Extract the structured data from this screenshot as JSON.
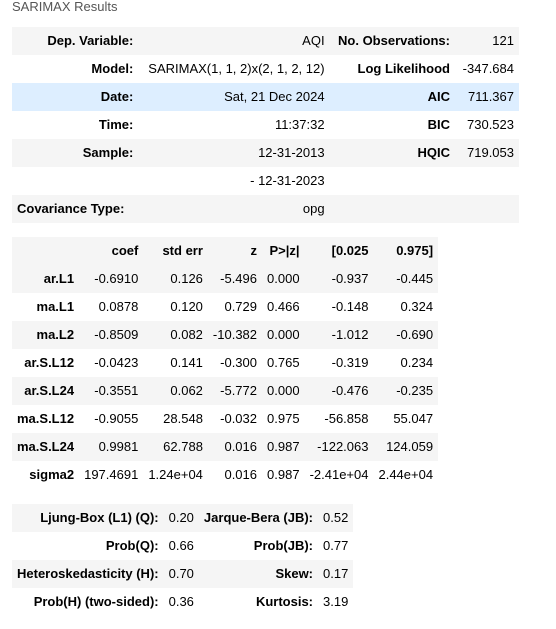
{
  "caption": "SARIMAX Results",
  "summary": {
    "rows": [
      {
        "l1": "Dep. Variable:",
        "v1": "AQI",
        "l2": "No. Observations:",
        "v2": "121"
      },
      {
        "l1": "Model:",
        "v1": "SARIMAX(1, 1, 2)x(2, 1, 2, 12)",
        "l2": "Log Likelihood",
        "v2": "-347.684"
      },
      {
        "l1": "Date:",
        "v1": "Sat, 21 Dec 2024",
        "l2": "AIC",
        "v2": "711.367"
      },
      {
        "l1": "Time:",
        "v1": "11:37:32",
        "l2": "BIC",
        "v2": "730.523"
      },
      {
        "l1": "Sample:",
        "v1": "12-31-2013",
        "l2": "HQIC",
        "v2": "719.053"
      },
      {
        "l1": "",
        "v1": "- 12-31-2023",
        "l2": "",
        "v2": ""
      },
      {
        "l1": "Covariance Type:",
        "v1": "opg",
        "l2": "",
        "v2": ""
      }
    ]
  },
  "coefficients": {
    "headers": [
      "",
      "coef",
      "std err",
      "z",
      "P>|z|",
      "[0.025",
      "0.975]"
    ],
    "rows": [
      [
        "ar.L1",
        "-0.6910",
        "0.126",
        "-5.496",
        "0.000",
        "-0.937",
        "-0.445"
      ],
      [
        "ma.L1",
        "0.0878",
        "0.120",
        "0.729",
        "0.466",
        "-0.148",
        "0.324"
      ],
      [
        "ma.L2",
        "-0.8509",
        "0.082",
        "-10.382",
        "0.000",
        "-1.012",
        "-0.690"
      ],
      [
        "ar.S.L12",
        "-0.0423",
        "0.141",
        "-0.300",
        "0.765",
        "-0.319",
        "0.234"
      ],
      [
        "ar.S.L24",
        "-0.3551",
        "0.062",
        "-5.772",
        "0.000",
        "-0.476",
        "-0.235"
      ],
      [
        "ma.S.L12",
        "-0.9055",
        "28.548",
        "-0.032",
        "0.975",
        "-56.858",
        "55.047"
      ],
      [
        "ma.S.L24",
        "0.9981",
        "62.788",
        "0.016",
        "0.987",
        "-122.063",
        "124.059"
      ],
      [
        "sigma2",
        "197.4691",
        "1.24e+04",
        "0.016",
        "0.987",
        "-2.41e+04",
        "2.44e+04"
      ]
    ]
  },
  "diagnostics": {
    "rows": [
      [
        "Ljung-Box (L1) (Q):",
        "0.20",
        "Jarque-Bera (JB):",
        "0.52"
      ],
      [
        "Prob(Q):",
        "0.66",
        "Prob(JB):",
        "0.77"
      ],
      [
        "Heteroskedasticity (H):",
        "0.70",
        "Skew:",
        "0.17"
      ],
      [
        "Prob(H) (two-sided):",
        "0.36",
        "Kurtosis:",
        "3.19"
      ]
    ]
  }
}
